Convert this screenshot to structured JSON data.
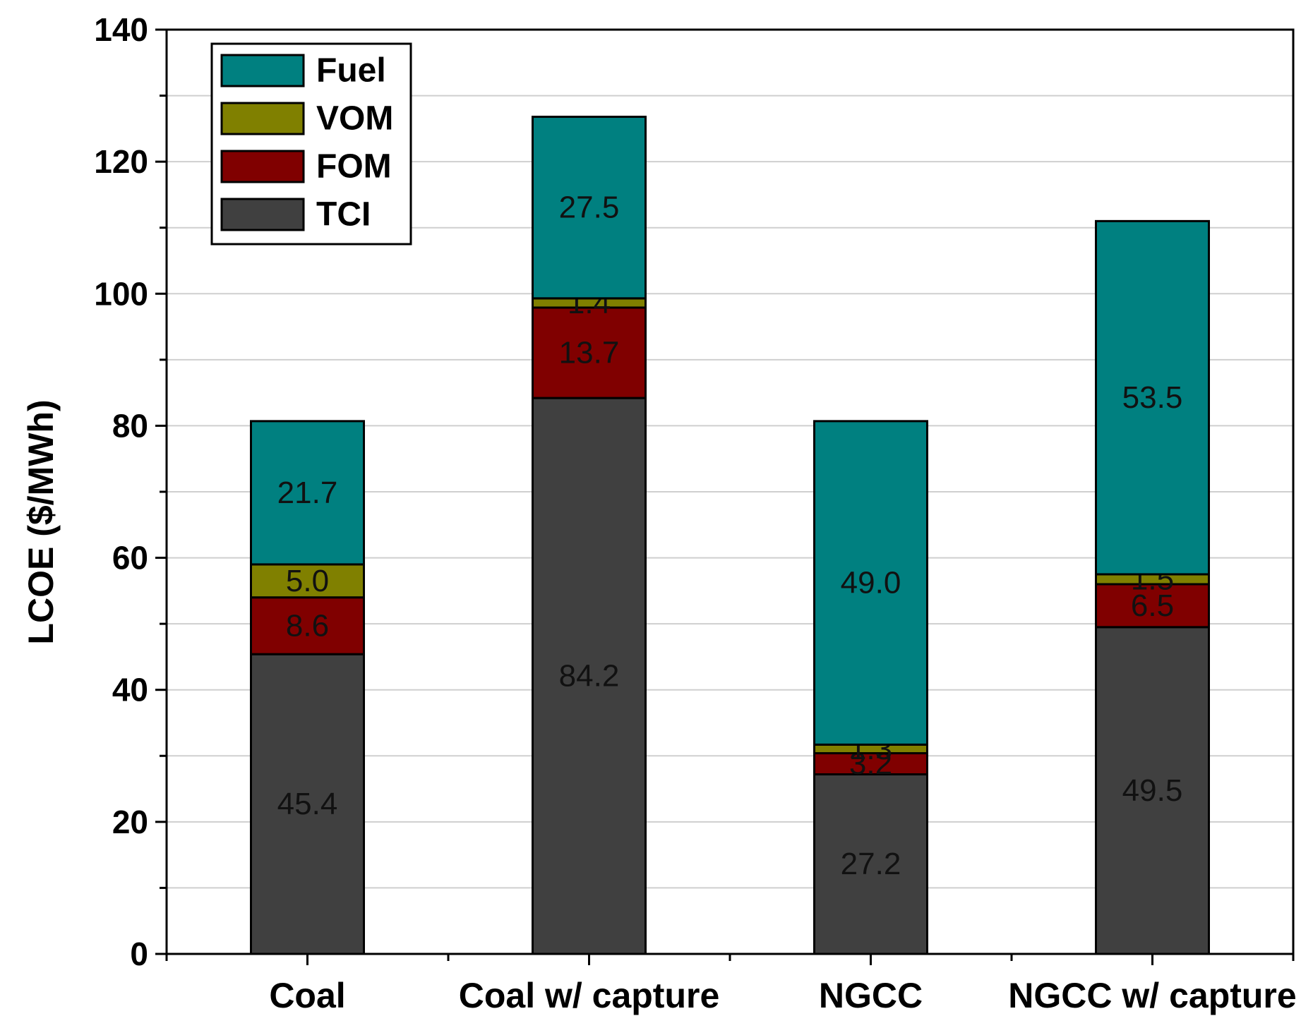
{
  "chart_data": {
    "type": "bar",
    "stacked": true,
    "title": "",
    "xlabel": "",
    "ylabel": "LCOE ($/MWh)",
    "ylim": [
      0,
      140
    ],
    "yticks": [
      0,
      20,
      40,
      60,
      80,
      100,
      120,
      140
    ],
    "grid": true,
    "legend_position": "top-left",
    "categories": [
      "Coal",
      "Coal w/ capture",
      "NGCC",
      "NGCC w/ capture"
    ],
    "series": [
      {
        "name": "TCI",
        "color": "#404040",
        "values": [
          45.4,
          84.2,
          27.2,
          49.5
        ],
        "labels": [
          "45.4",
          "84.2",
          "27.2",
          "49.5"
        ]
      },
      {
        "name": "FOM",
        "color": "#800000",
        "values": [
          8.6,
          13.7,
          3.2,
          6.5
        ],
        "labels": [
          "8.6",
          "13.7",
          "3.2",
          "6.5"
        ]
      },
      {
        "name": "VOM",
        "color": "#808000",
        "values": [
          5.0,
          1.4,
          1.3,
          1.5
        ],
        "labels": [
          "5.0",
          "1.4",
          "1.3",
          "1.5"
        ]
      },
      {
        "name": "Fuel",
        "color": "#008080",
        "values": [
          21.7,
          27.5,
          49.0,
          53.5
        ],
        "labels": [
          "21.7",
          "27.5",
          "49.0",
          "53.5"
        ]
      }
    ],
    "legend_order": [
      "Fuel",
      "VOM",
      "FOM",
      "TCI"
    ]
  }
}
